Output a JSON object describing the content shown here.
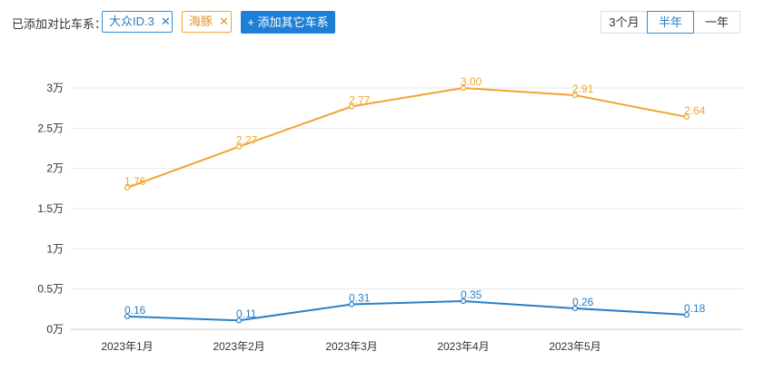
{
  "toolbar": {
    "label": "已添加对比车系：",
    "tags": [
      {
        "name": "大众ID.3",
        "remove": "✕"
      },
      {
        "name": "海豚",
        "remove": "✕"
      }
    ],
    "add_button": "+ 添加其它车系",
    "periods": [
      "3个月",
      "半年",
      "一年"
    ],
    "active_period": "半年"
  },
  "colors": {
    "series_1": "#2b7fc4",
    "series_2": "#f0a530"
  },
  "chart_data": {
    "type": "line",
    "categories": [
      "2023年1月",
      "2023年2月",
      "2023年3月",
      "2023年4月",
      "2023年5月",
      ""
    ],
    "yticks": [
      "0万",
      "0.5万",
      "1万",
      "1.5万",
      "2万",
      "2.5万",
      "3万"
    ],
    "ylim": [
      0,
      3
    ],
    "series": [
      {
        "name": "大众ID.3",
        "values": [
          0.16,
          0.11,
          0.31,
          0.35,
          0.26,
          0.18
        ],
        "labels": [
          "0.16",
          "0.11",
          "0.31",
          "0.35",
          "0.26",
          "0.18"
        ]
      },
      {
        "name": "海豚",
        "values": [
          1.76,
          2.27,
          2.77,
          3.0,
          2.91,
          2.64
        ],
        "labels": [
          "1.76",
          "2.27",
          "2.77",
          "3.00",
          "2.91",
          "2.64"
        ]
      }
    ],
    "grid": true,
    "legend": "none"
  }
}
